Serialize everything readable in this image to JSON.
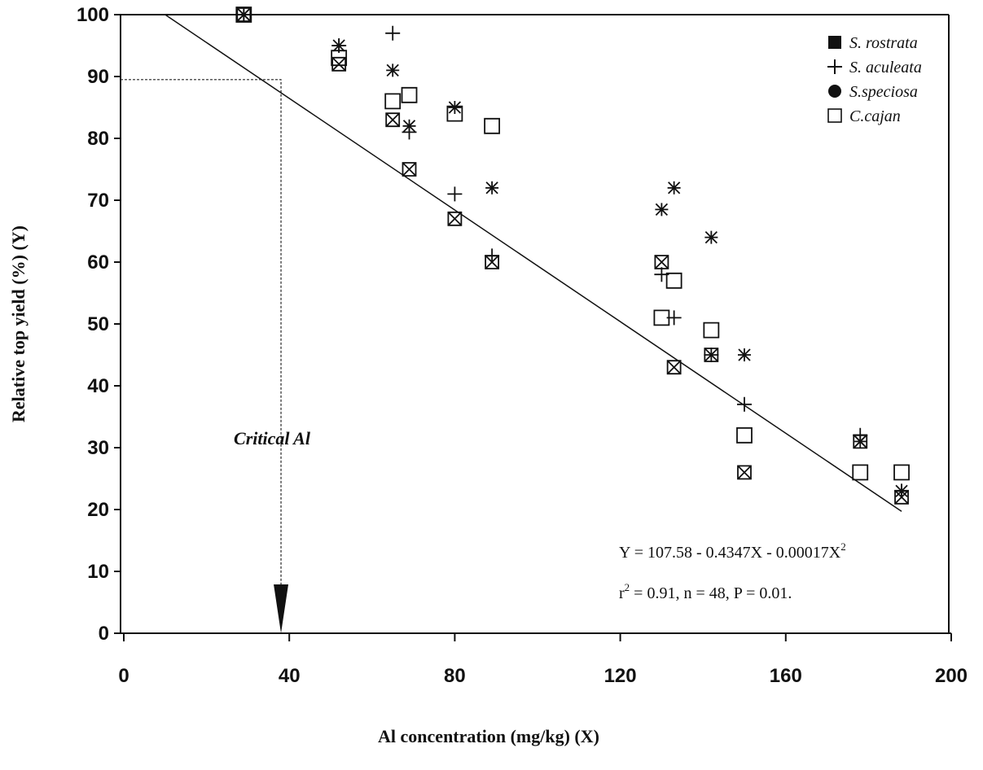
{
  "chart_data": {
    "type": "scatter",
    "xlabel": "Al concentration (mg/kg) (X)",
    "ylabel": "Relative top yield (%) (Y)",
    "xlim": [
      0,
      200
    ],
    "xticks": [
      0,
      40,
      80,
      120,
      160,
      200
    ],
    "ylim": [
      0,
      100
    ],
    "yticks": [
      0,
      10,
      20,
      30,
      40,
      50,
      60,
      70,
      80,
      90,
      100
    ],
    "legend": "upper right",
    "series": [
      {
        "name": "S. rostrata",
        "color": "#111111",
        "x": [
          29,
          52,
          65,
          69,
          80,
          89,
          130,
          133,
          142,
          150,
          178,
          188
        ],
        "values": [
          100,
          92,
          83,
          75,
          67,
          60,
          60,
          43,
          45,
          26,
          31,
          22
        ]
      },
      {
        "name": "S. aculeata",
        "color": "#111111",
        "x": [
          29,
          52,
          65,
          69,
          80,
          89,
          130,
          133,
          142,
          150,
          178,
          188
        ],
        "values": [
          100,
          95,
          97,
          81,
          71,
          61,
          58,
          51,
          45,
          37,
          32,
          23
        ]
      },
      {
        "name": "S.speciosa",
        "color": "#111111",
        "x": [
          29,
          52,
          65,
          69,
          80,
          89,
          130,
          133,
          142,
          150,
          178,
          188
        ],
        "values": [
          100,
          95,
          91,
          82,
          85,
          72,
          68.5,
          72,
          64,
          45,
          31,
          23
        ]
      },
      {
        "name": "C.cajan",
        "color": "#111111",
        "x": [
          29,
          52,
          65,
          69,
          80,
          89,
          130,
          133,
          142,
          150,
          178,
          188
        ],
        "values": [
          100,
          93,
          86,
          87,
          84,
          82,
          51,
          57,
          49,
          32,
          26,
          26
        ]
      }
    ],
    "fit_line": {
      "x": [
        10,
        188
      ],
      "values": [
        100,
        19.7
      ]
    },
    "critical": {
      "label": "Critical Al",
      "x": 38,
      "y": 89.5
    },
    "equation": {
      "line1": "Y  =  107.58 - 0.4347X - 0.00017X",
      "line1_sup": "2",
      "line2_pre": "r",
      "line2_sup": "2",
      "line2": " =  0.91, n  =  48, P  =  0.01."
    }
  }
}
